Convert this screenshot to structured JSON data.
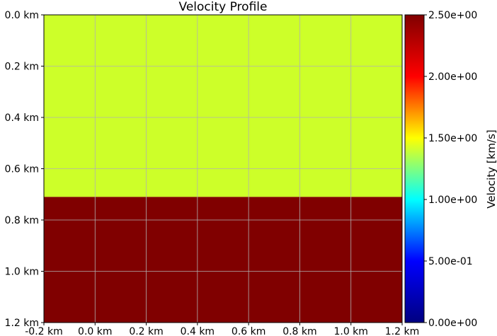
{
  "chart_data": {
    "type": "heatmap",
    "title": "Velocity Profile",
    "xlabel": "",
    "ylabel": "",
    "x_range": [
      -0.2,
      1.2
    ],
    "y_range": [
      0.0,
      1.2
    ],
    "y_inverted": true,
    "x_ticks": [
      {
        "value": -0.2,
        "label": "-0.2 km"
      },
      {
        "value": 0.0,
        "label": "0.0 km"
      },
      {
        "value": 0.2,
        "label": "0.2 km"
      },
      {
        "value": 0.4,
        "label": "0.4 km"
      },
      {
        "value": 0.6,
        "label": "0.6 km"
      },
      {
        "value": 0.8,
        "label": "0.8 km"
      },
      {
        "value": 1.0,
        "label": "1.0 km"
      },
      {
        "value": 1.2,
        "label": "1.2 km"
      }
    ],
    "y_ticks": [
      {
        "value": 0.0,
        "label": "0.0 km"
      },
      {
        "value": 0.2,
        "label": "0.2 km"
      },
      {
        "value": 0.4,
        "label": "0.4 km"
      },
      {
        "value": 0.6,
        "label": "0.6 km"
      },
      {
        "value": 0.8,
        "label": "0.8 km"
      },
      {
        "value": 1.0,
        "label": "1.0 km"
      },
      {
        "value": 1.2,
        "label": "1.2 km"
      }
    ],
    "grid": true,
    "layers": [
      {
        "depth_top": 0.0,
        "depth_bottom": 0.71,
        "velocity": 1.5,
        "color": "#cdff29"
      },
      {
        "depth_top": 0.71,
        "depth_bottom": 1.2,
        "velocity": 2.5,
        "color": "#800000"
      }
    ],
    "colorbar": {
      "label": "Velocity [km/s]",
      "colormap": "jet",
      "range": [
        0.0,
        2.5
      ],
      "ticks": [
        {
          "value": 0.0,
          "label": "0.00e+00"
        },
        {
          "value": 0.5,
          "label": "5.00e-01"
        },
        {
          "value": 1.0,
          "label": "1.00e+00"
        },
        {
          "value": 1.5,
          "label": "1.50e+00"
        },
        {
          "value": 2.0,
          "label": "2.00e+00"
        },
        {
          "value": 2.5,
          "label": "2.50e+00"
        }
      ],
      "stops": [
        "#000080",
        "#0000ff",
        "#00ffff",
        "#ffff00",
        "#ff0000",
        "#800000"
      ]
    },
    "grid_color": "#b0b0b0"
  }
}
